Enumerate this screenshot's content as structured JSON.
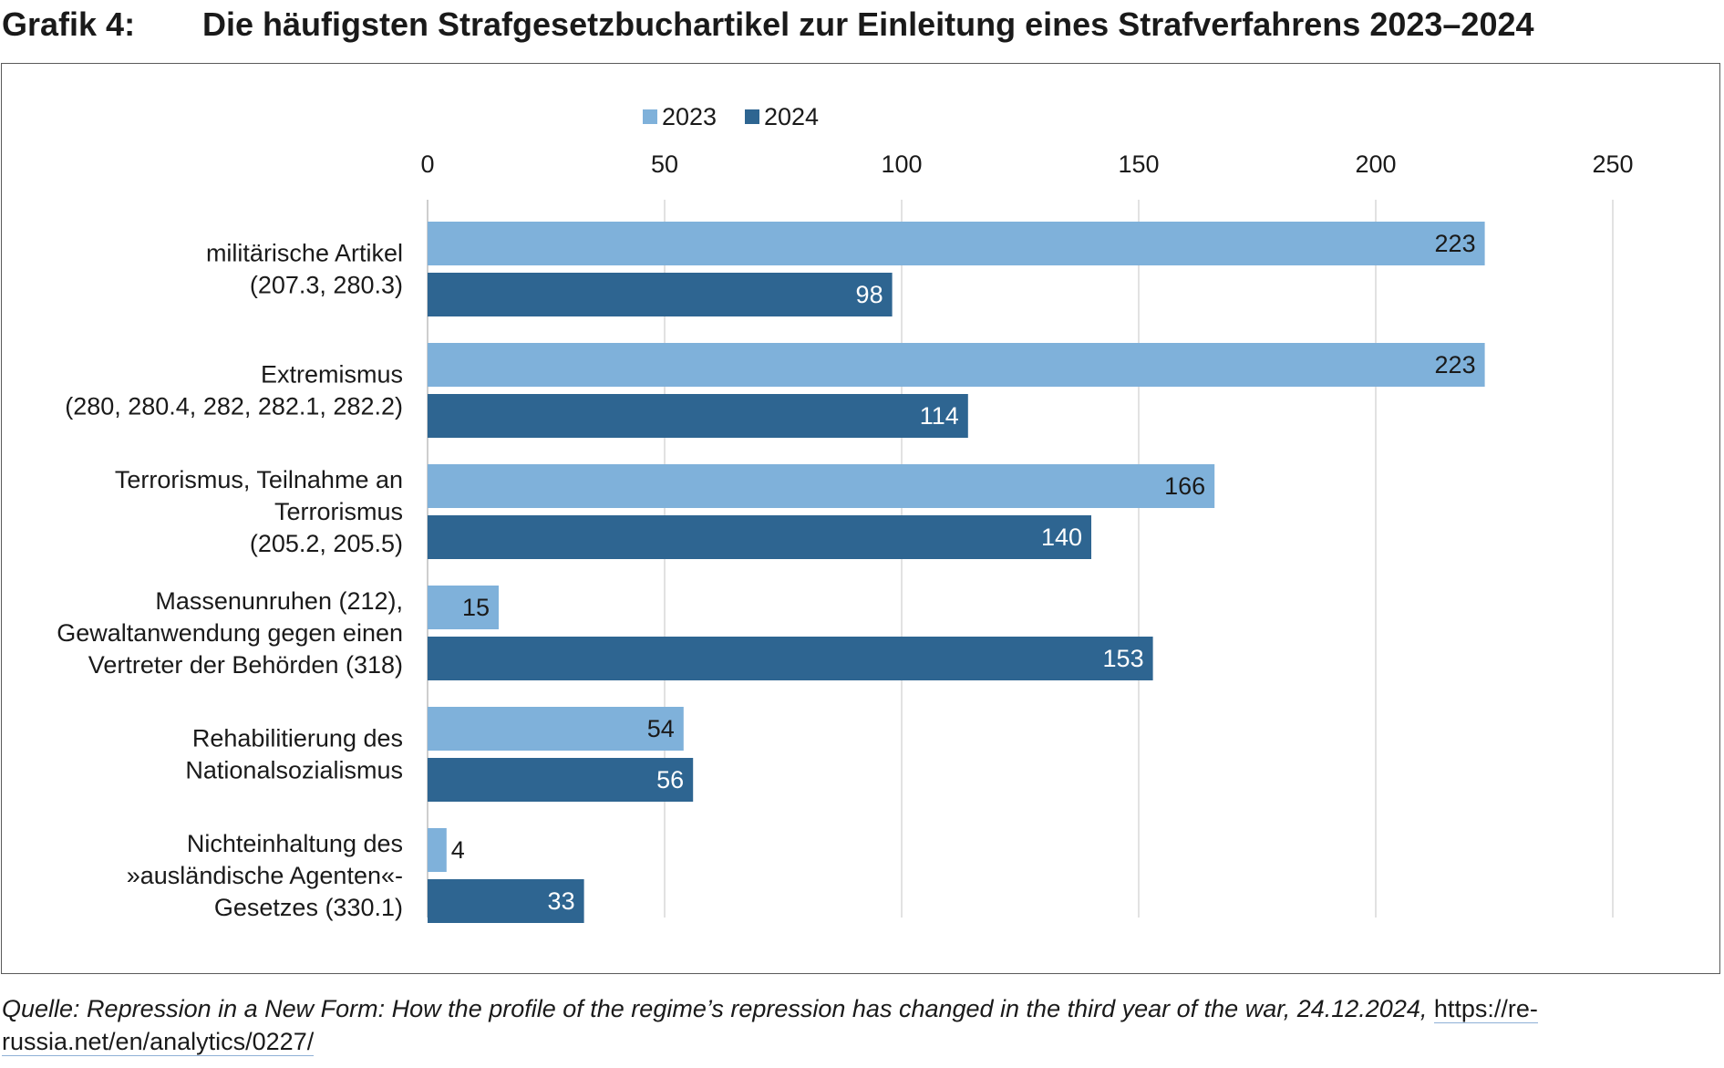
{
  "header": {
    "label": "Grafik 4:",
    "title": "Die häufigsten Strafgesetzbuchartikel zur Einleitung eines Strafverfahrens 2023–2024"
  },
  "chart_data": {
    "type": "bar",
    "orientation": "horizontal",
    "title": "Die häufigsten Strafgesetzbuchartikel zur Einleitung eines Strafverfahrens 2023–2024",
    "xlabel": "",
    "ylabel": "",
    "xlim": [
      0,
      250
    ],
    "ticks": [
      0,
      50,
      100,
      150,
      200,
      250
    ],
    "grid": true,
    "legend_position": "top",
    "categories": [
      [
        "militärische Artikel",
        "(207.3, 280.3)"
      ],
      [
        "Extremismus",
        "(280, 280.4, 282, 282.1, 282.2)"
      ],
      [
        "Terrorismus, Teilnahme an",
        "Terrorismus",
        "(205.2, 205.5)"
      ],
      [
        "Massenunruhen (212),",
        "Gewaltanwendung gegen einen",
        "Vertreter der Behörden (318)"
      ],
      [
        "Rehabilitierung des",
        "Nationalsozialismus"
      ],
      [
        "Nichteinhaltung des",
        "»ausländische Agenten«-",
        "Gesetzes (330.1)"
      ]
    ],
    "series": [
      {
        "name": "2023",
        "color": "#7fb1da",
        "values": [
          223,
          223,
          166,
          15,
          54,
          4
        ]
      },
      {
        "name": "2024",
        "color": "#2e6591",
        "values": [
          98,
          114,
          140,
          153,
          56,
          33
        ]
      }
    ]
  },
  "source": {
    "citation": "Quelle: Repression in a New Form: How the profile of the regime’s repression has changed in the third year of the war, 24.12.2024,",
    "link": "https://re-russia.net/en/analytics/0227/"
  }
}
